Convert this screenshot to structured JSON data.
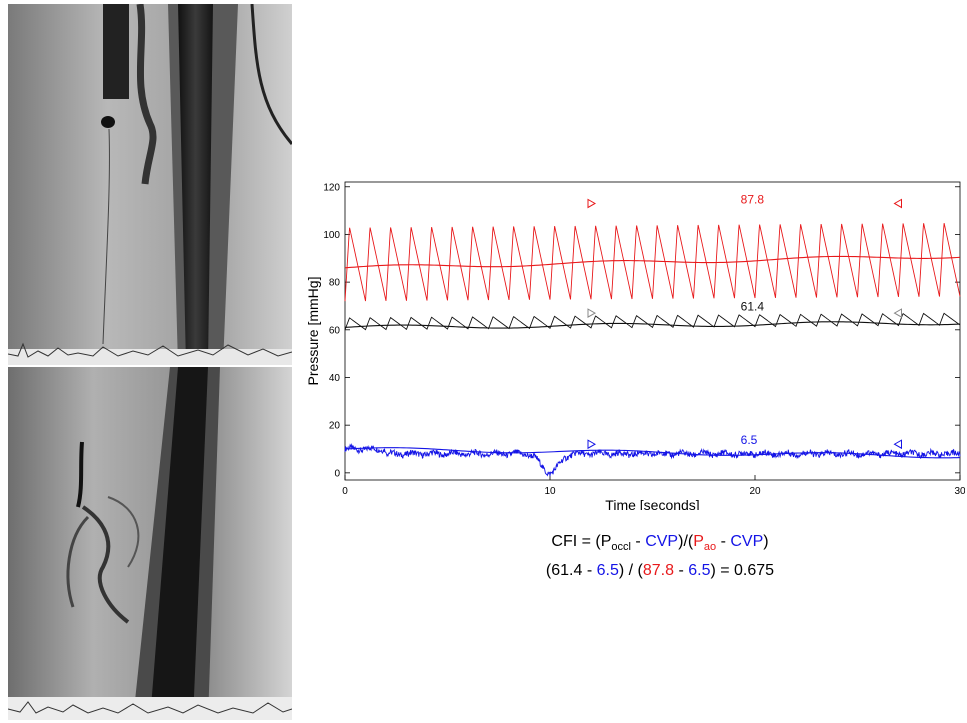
{
  "chart_data": {
    "type": "line",
    "xlabel": "Time [seconds]",
    "ylabel": "Pressure [mmHg]",
    "xlim": [
      0,
      30
    ],
    "ylim": [
      -3,
      122
    ],
    "x_ticks": [
      0,
      10,
      20,
      30
    ],
    "y_ticks": [
      0,
      20,
      40,
      60,
      80,
      100,
      120
    ],
    "grid": false,
    "series": [
      {
        "color": "#e8191b",
        "kind": "aortic pulsatile",
        "min": 72,
        "max": 103,
        "beats": 30
      },
      {
        "color": "#e8191b",
        "kind": "aortic mean",
        "start": 86,
        "end": 91
      },
      {
        "color": "#111111",
        "kind": "occlusion pulsatile",
        "min": 60,
        "max": 65,
        "beats": 30
      },
      {
        "color": "#111111",
        "kind": "occlusion mean",
        "start": 61,
        "end": 63
      },
      {
        "color": "#1414e6",
        "kind": "central venous raw",
        "base": 8,
        "dip_x": 10,
        "dip_min": 0
      },
      {
        "color": "#1414e6",
        "kind": "central venous mean",
        "start": 10,
        "end": 7
      }
    ],
    "window": {
      "start": 12,
      "end": 27
    },
    "annotations": [
      {
        "text": "87.8",
        "x": 19.3,
        "y": 113,
        "color": "#e8191b"
      },
      {
        "text": "61.4",
        "x": 19.3,
        "y": 68,
        "color": "#111111"
      },
      {
        "text": "6.5",
        "x": 19.3,
        "y": 12,
        "color": "#1414e6"
      }
    ]
  },
  "formula": {
    "line1": {
      "prefix": "CFI = (P",
      "sub1": "occl",
      "minus1": " - ",
      "cvp1": "CVP",
      "mid": ")/(",
      "pao_p": "P",
      "pao_sub": "ao",
      "minus2": " - ",
      "cvp2": "CVP",
      "end": ")"
    },
    "line2": {
      "open": "(61.4 - ",
      "v1": "6.5",
      "mid": ") / (",
      "v2": "87.8",
      "minus": " - ",
      "v3": "6.5",
      "end": ") = 0.675"
    }
  },
  "colors": {
    "aortic": "#e8191b",
    "occlusion": "#111111",
    "cvp": "#1414e6"
  }
}
